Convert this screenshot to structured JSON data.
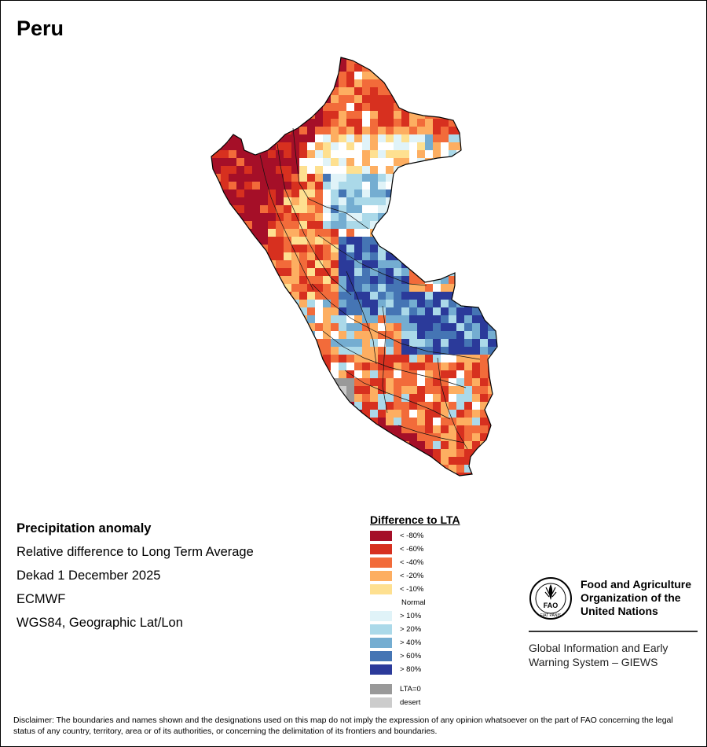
{
  "title": "Peru",
  "info": {
    "heading": "Precipitation anomaly",
    "lines": [
      "Relative difference to Long Term Average",
      "Dekad 1 December 2025",
      "ECMWF",
      "WGS84, Geographic Lat/Lon"
    ]
  },
  "legend": {
    "title": "Difference to LTA",
    "items": [
      {
        "label": "< -80%",
        "color": "#a50f28"
      },
      {
        "label": "< -60%",
        "color": "#d7301f"
      },
      {
        "label": "< -40%",
        "color": "#f26b3a"
      },
      {
        "label": "< -20%",
        "color": "#fdae61"
      },
      {
        "label": "< -10%",
        "color": "#fee090"
      },
      {
        "label": "Normal",
        "color": "#ffffff"
      },
      {
        "label": "> 10%",
        "color": "#e0f3f8"
      },
      {
        "label": "> 20%",
        "color": "#abd9e9"
      },
      {
        "label": "> 40%",
        "color": "#74add1"
      },
      {
        "label": "> 60%",
        "color": "#4575b4"
      },
      {
        "label": "> 80%",
        "color": "#2b3a9a"
      },
      {
        "label": "LTA=0",
        "color": "#999999"
      },
      {
        "label": "desert",
        "color": "#cccccc"
      }
    ]
  },
  "organization": {
    "logo_text": "FAO",
    "logo_motto": "FIAT PANIS",
    "name_lines": [
      "Food and Agriculture",
      "Organization of the",
      "United Nations"
    ],
    "program_lines": [
      "Global Information and Early",
      "Warning System – GIEWS"
    ]
  },
  "disclaimer": "Disclaimer: The boundaries and names shown and the designations used on this map do not imply the expression of any opinion whatsoever on the part of FAO concerning the legal status of any country, territory, area or of its authorities, or concerning the delimitation of its frontiers and boundaries."
}
